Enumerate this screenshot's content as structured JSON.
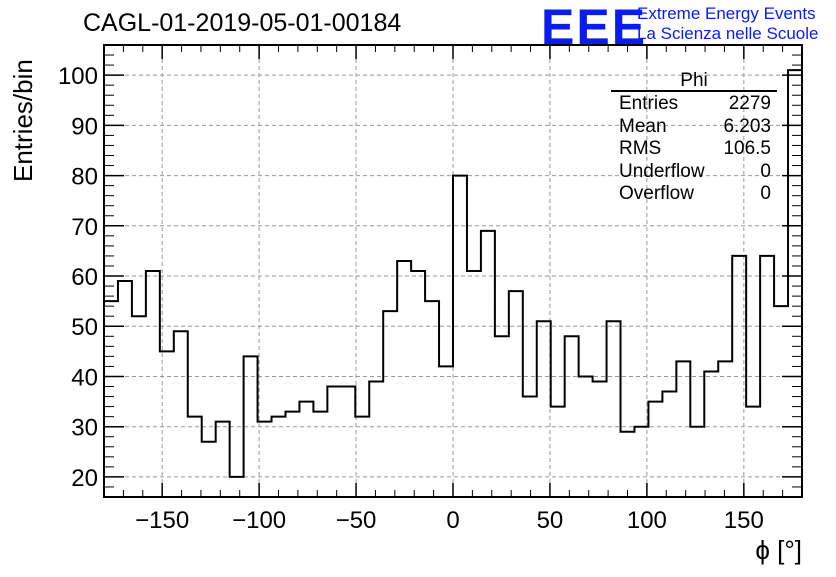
{
  "header": {
    "run_title": "CAGL-01-2019-05-01-00184",
    "logo_text": "EEE",
    "logo_line1": "Extreme Energy Events",
    "logo_line2": "La Scienza nelle Scuole"
  },
  "stats": {
    "name": "Phi",
    "rows": [
      {
        "label": "Entries",
        "value": "2279"
      },
      {
        "label": "Mean",
        "value": "6.203"
      },
      {
        "label": "RMS",
        "value": "106.5"
      },
      {
        "label": "Underflow",
        "value": "0"
      },
      {
        "label": "Overflow",
        "value": "0"
      }
    ]
  },
  "colors": {
    "line": "#000000",
    "grid": "#9a9a9a",
    "logo": "#0a1cf0"
  },
  "chart_data": {
    "type": "step-histogram",
    "xlabel": "ϕ [°]",
    "ylabel": "Entries/bin",
    "xlim": [
      -180,
      180
    ],
    "ylim": [
      16,
      106
    ],
    "bin_width": 7.2,
    "xticks": [
      -150,
      -100,
      -50,
      0,
      50,
      100,
      150
    ],
    "yticks": [
      20,
      30,
      40,
      50,
      60,
      70,
      80,
      90,
      100
    ],
    "grid": true,
    "bin_edges_start": -180,
    "values": [
      55,
      59,
      52,
      61,
      45,
      49,
      32,
      27,
      31,
      20,
      44,
      31,
      32,
      33,
      35,
      33,
      38,
      38,
      32,
      39,
      53,
      63,
      61,
      55,
      42,
      80,
      61,
      69,
      48,
      57,
      36,
      51,
      34,
      48,
      40,
      39,
      51,
      29,
      30,
      35,
      37,
      43,
      30,
      41,
      43,
      64,
      34,
      64,
      54,
      101
    ]
  }
}
